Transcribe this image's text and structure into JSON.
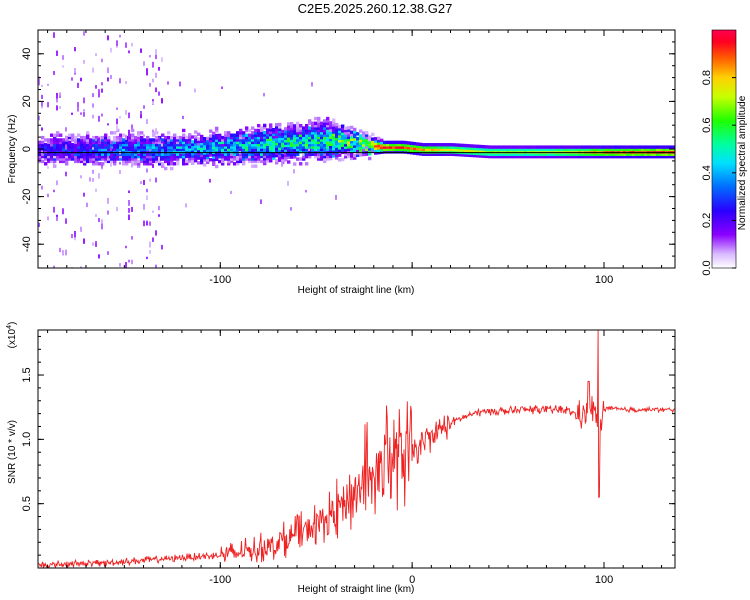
{
  "title": "C2E5.2025.260.12.38.G27",
  "chart_data": [
    {
      "type": "heatmap",
      "title": "C2E5.2025.260.12.38.G27",
      "xlabel": "Height of straight line (km)",
      "ylabel": "Frequency (Hz)",
      "xlim": [
        -195,
        137
      ],
      "ylim": [
        -50,
        50
      ],
      "xticks": [
        -100,
        0,
        100
      ],
      "xtick_labels": [
        "-100",
        "",
        "100"
      ],
      "yticks": [
        -40,
        -20,
        0,
        20,
        40
      ],
      "ytick_labels": [
        "-40",
        "-20",
        "0",
        "20",
        "40"
      ],
      "colorbar": {
        "label": "Normalized spectral amplitude",
        "range": [
          0,
          1
        ],
        "ticks": [
          0.0,
          0.2,
          0.4,
          0.6,
          0.8
        ],
        "tick_labels": [
          "0.0",
          "0.2",
          "0.4",
          "0.6",
          "0.8"
        ],
        "colormap": "rainbow (white-purple-blue-cyan-green-yellow-orange-red)"
      },
      "description_points": {
        "height_km": [
          -190,
          -150,
          -120,
          -100,
          -80,
          -60,
          -45,
          -35,
          -25,
          -15,
          -5,
          5,
          20,
          40,
          60,
          80,
          95,
          110,
          137
        ],
        "ridge_frequency_hz": [
          0,
          0,
          0,
          1,
          2,
          3,
          4,
          3,
          2,
          1,
          1,
          0,
          0,
          -1,
          -1,
          -1,
          -1,
          -1,
          -1
        ],
        "band_halfwidth_hz": [
          6,
          6,
          6,
          6,
          7,
          7,
          8,
          6,
          4,
          2,
          2,
          2,
          2,
          2,
          2,
          2,
          2,
          2,
          2
        ],
        "peak_amplitude": [
          0.3,
          0.4,
          0.45,
          0.5,
          0.55,
          0.6,
          0.6,
          0.7,
          0.85,
          1.0,
          0.95,
          0.9,
          0.8,
          0.75,
          0.75,
          0.8,
          0.9,
          0.95,
          1.0
        ]
      }
    },
    {
      "type": "line",
      "xlabel": "Height of straight line (km)",
      "ylabel": "SNR (10 * v/v)",
      "y_multiplier": "(x10^4)",
      "xlim": [
        -195,
        137
      ],
      "ylim": [
        0,
        1.85
      ],
      "xticks": [
        -100,
        0,
        100
      ],
      "xtick_labels": [
        "-100",
        "0",
        "100"
      ],
      "yticks": [
        0.5,
        1.0,
        1.5
      ],
      "ytick_labels": [
        "0.5",
        "1.0",
        "1.5"
      ],
      "color": "#ee2222",
      "series": [
        {
          "x": [
            -195,
            -180,
            -160,
            -140,
            -120,
            -100,
            -90,
            -80,
            -70,
            -60,
            -50,
            -40,
            -30,
            -25,
            -20,
            -15,
            -10,
            -5,
            0,
            5,
            10,
            15,
            20,
            25,
            30,
            35,
            40,
            50,
            60,
            70,
            80,
            85,
            90,
            95,
            97,
            100,
            110,
            120,
            137
          ],
          "y": [
            0.02,
            0.03,
            0.04,
            0.06,
            0.08,
            0.1,
            0.12,
            0.15,
            0.2,
            0.26,
            0.34,
            0.44,
            0.58,
            0.66,
            0.74,
            0.8,
            0.84,
            0.86,
            0.9,
            0.95,
            1.02,
            1.08,
            1.13,
            1.16,
            1.19,
            1.21,
            1.22,
            1.22,
            1.23,
            1.23,
            1.23,
            1.2,
            1.18,
            1.25,
            1.0,
            1.24,
            1.23,
            1.23,
            1.23
          ]
        }
      ],
      "annotations": [
        {
          "x": 92,
          "y": 1.45,
          "note": "spike"
        },
        {
          "x": 97,
          "y": 1.85,
          "note": "maximum spike"
        },
        {
          "x": 97,
          "y": 0.55,
          "note": "dip"
        },
        {
          "x": -15,
          "y": 1.28,
          "note": "noisy peak"
        }
      ]
    }
  ]
}
